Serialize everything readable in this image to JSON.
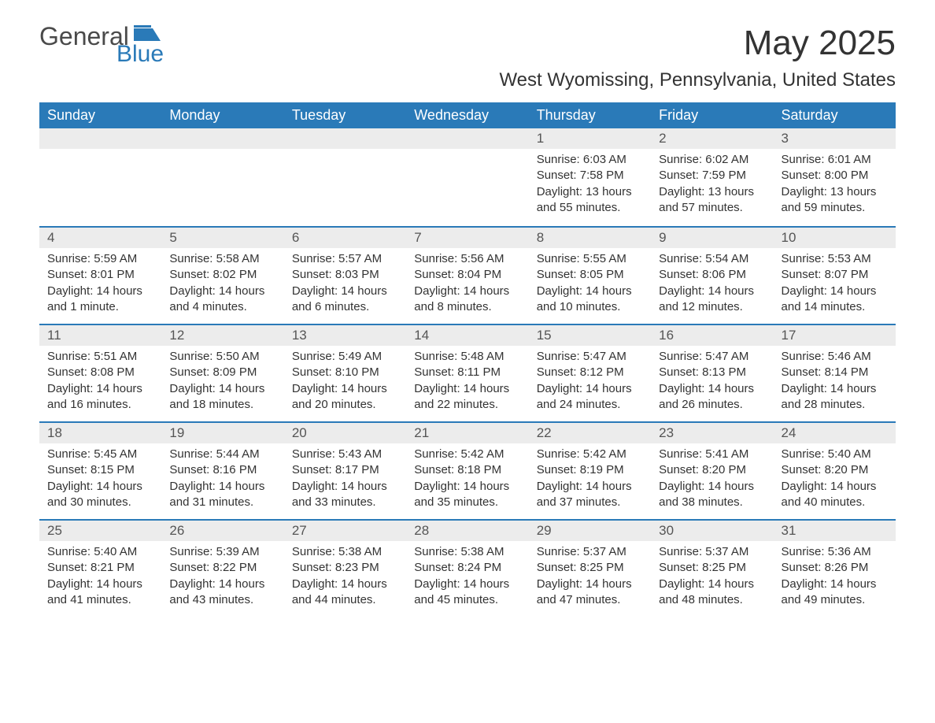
{
  "brand": {
    "word1": "General",
    "word2": "Blue",
    "flag_color": "#2a7ab8"
  },
  "title": "May 2025",
  "subtitle": "West Wyomissing, Pennsylvania, United States",
  "colors": {
    "header_bg": "#2a7ab8",
    "header_text": "#ffffff",
    "daynum_bg": "#ececec",
    "rule": "#2a7ab8",
    "body_text": "#333333",
    "page_bg": "#ffffff"
  },
  "day_headers": [
    "Sunday",
    "Monday",
    "Tuesday",
    "Wednesday",
    "Thursday",
    "Friday",
    "Saturday"
  ],
  "weeks": [
    [
      {
        "n": "",
        "sunrise": "",
        "sunset": "",
        "daylight": ""
      },
      {
        "n": "",
        "sunrise": "",
        "sunset": "",
        "daylight": ""
      },
      {
        "n": "",
        "sunrise": "",
        "sunset": "",
        "daylight": ""
      },
      {
        "n": "",
        "sunrise": "",
        "sunset": "",
        "daylight": ""
      },
      {
        "n": "1",
        "sunrise": "Sunrise: 6:03 AM",
        "sunset": "Sunset: 7:58 PM",
        "daylight": "Daylight: 13 hours and 55 minutes."
      },
      {
        "n": "2",
        "sunrise": "Sunrise: 6:02 AM",
        "sunset": "Sunset: 7:59 PM",
        "daylight": "Daylight: 13 hours and 57 minutes."
      },
      {
        "n": "3",
        "sunrise": "Sunrise: 6:01 AM",
        "sunset": "Sunset: 8:00 PM",
        "daylight": "Daylight: 13 hours and 59 minutes."
      }
    ],
    [
      {
        "n": "4",
        "sunrise": "Sunrise: 5:59 AM",
        "sunset": "Sunset: 8:01 PM",
        "daylight": "Daylight: 14 hours and 1 minute."
      },
      {
        "n": "5",
        "sunrise": "Sunrise: 5:58 AM",
        "sunset": "Sunset: 8:02 PM",
        "daylight": "Daylight: 14 hours and 4 minutes."
      },
      {
        "n": "6",
        "sunrise": "Sunrise: 5:57 AM",
        "sunset": "Sunset: 8:03 PM",
        "daylight": "Daylight: 14 hours and 6 minutes."
      },
      {
        "n": "7",
        "sunrise": "Sunrise: 5:56 AM",
        "sunset": "Sunset: 8:04 PM",
        "daylight": "Daylight: 14 hours and 8 minutes."
      },
      {
        "n": "8",
        "sunrise": "Sunrise: 5:55 AM",
        "sunset": "Sunset: 8:05 PM",
        "daylight": "Daylight: 14 hours and 10 minutes."
      },
      {
        "n": "9",
        "sunrise": "Sunrise: 5:54 AM",
        "sunset": "Sunset: 8:06 PM",
        "daylight": "Daylight: 14 hours and 12 minutes."
      },
      {
        "n": "10",
        "sunrise": "Sunrise: 5:53 AM",
        "sunset": "Sunset: 8:07 PM",
        "daylight": "Daylight: 14 hours and 14 minutes."
      }
    ],
    [
      {
        "n": "11",
        "sunrise": "Sunrise: 5:51 AM",
        "sunset": "Sunset: 8:08 PM",
        "daylight": "Daylight: 14 hours and 16 minutes."
      },
      {
        "n": "12",
        "sunrise": "Sunrise: 5:50 AM",
        "sunset": "Sunset: 8:09 PM",
        "daylight": "Daylight: 14 hours and 18 minutes."
      },
      {
        "n": "13",
        "sunrise": "Sunrise: 5:49 AM",
        "sunset": "Sunset: 8:10 PM",
        "daylight": "Daylight: 14 hours and 20 minutes."
      },
      {
        "n": "14",
        "sunrise": "Sunrise: 5:48 AM",
        "sunset": "Sunset: 8:11 PM",
        "daylight": "Daylight: 14 hours and 22 minutes."
      },
      {
        "n": "15",
        "sunrise": "Sunrise: 5:47 AM",
        "sunset": "Sunset: 8:12 PM",
        "daylight": "Daylight: 14 hours and 24 minutes."
      },
      {
        "n": "16",
        "sunrise": "Sunrise: 5:47 AM",
        "sunset": "Sunset: 8:13 PM",
        "daylight": "Daylight: 14 hours and 26 minutes."
      },
      {
        "n": "17",
        "sunrise": "Sunrise: 5:46 AM",
        "sunset": "Sunset: 8:14 PM",
        "daylight": "Daylight: 14 hours and 28 minutes."
      }
    ],
    [
      {
        "n": "18",
        "sunrise": "Sunrise: 5:45 AM",
        "sunset": "Sunset: 8:15 PM",
        "daylight": "Daylight: 14 hours and 30 minutes."
      },
      {
        "n": "19",
        "sunrise": "Sunrise: 5:44 AM",
        "sunset": "Sunset: 8:16 PM",
        "daylight": "Daylight: 14 hours and 31 minutes."
      },
      {
        "n": "20",
        "sunrise": "Sunrise: 5:43 AM",
        "sunset": "Sunset: 8:17 PM",
        "daylight": "Daylight: 14 hours and 33 minutes."
      },
      {
        "n": "21",
        "sunrise": "Sunrise: 5:42 AM",
        "sunset": "Sunset: 8:18 PM",
        "daylight": "Daylight: 14 hours and 35 minutes."
      },
      {
        "n": "22",
        "sunrise": "Sunrise: 5:42 AM",
        "sunset": "Sunset: 8:19 PM",
        "daylight": "Daylight: 14 hours and 37 minutes."
      },
      {
        "n": "23",
        "sunrise": "Sunrise: 5:41 AM",
        "sunset": "Sunset: 8:20 PM",
        "daylight": "Daylight: 14 hours and 38 minutes."
      },
      {
        "n": "24",
        "sunrise": "Sunrise: 5:40 AM",
        "sunset": "Sunset: 8:20 PM",
        "daylight": "Daylight: 14 hours and 40 minutes."
      }
    ],
    [
      {
        "n": "25",
        "sunrise": "Sunrise: 5:40 AM",
        "sunset": "Sunset: 8:21 PM",
        "daylight": "Daylight: 14 hours and 41 minutes."
      },
      {
        "n": "26",
        "sunrise": "Sunrise: 5:39 AM",
        "sunset": "Sunset: 8:22 PM",
        "daylight": "Daylight: 14 hours and 43 minutes."
      },
      {
        "n": "27",
        "sunrise": "Sunrise: 5:38 AM",
        "sunset": "Sunset: 8:23 PM",
        "daylight": "Daylight: 14 hours and 44 minutes."
      },
      {
        "n": "28",
        "sunrise": "Sunrise: 5:38 AM",
        "sunset": "Sunset: 8:24 PM",
        "daylight": "Daylight: 14 hours and 45 minutes."
      },
      {
        "n": "29",
        "sunrise": "Sunrise: 5:37 AM",
        "sunset": "Sunset: 8:25 PM",
        "daylight": "Daylight: 14 hours and 47 minutes."
      },
      {
        "n": "30",
        "sunrise": "Sunrise: 5:37 AM",
        "sunset": "Sunset: 8:25 PM",
        "daylight": "Daylight: 14 hours and 48 minutes."
      },
      {
        "n": "31",
        "sunrise": "Sunrise: 5:36 AM",
        "sunset": "Sunset: 8:26 PM",
        "daylight": "Daylight: 14 hours and 49 minutes."
      }
    ]
  ]
}
